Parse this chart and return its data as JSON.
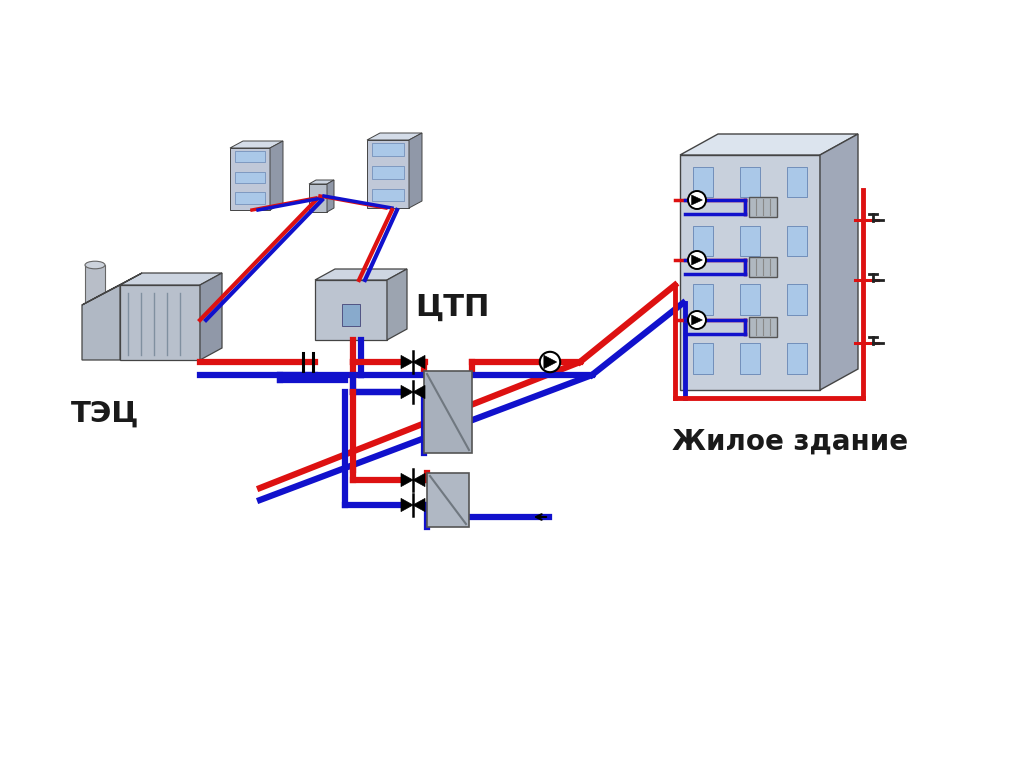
{
  "bg_color": "#ffffff",
  "red_color": "#dd1111",
  "blue_color": "#1111cc",
  "gray_light": "#c0c8d4",
  "gray_mid": "#a0a8b8",
  "gray_dark": "#888898",
  "hx_color": "#a8b0bc",
  "line_width": 4.5,
  "label_tec": "ТЭЦ",
  "label_ctp": "ЦТП",
  "label_building": "Жилое здание"
}
